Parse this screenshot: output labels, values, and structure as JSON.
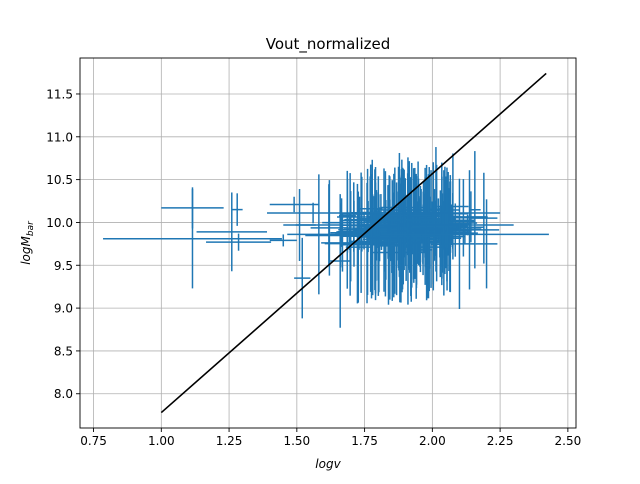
{
  "chart_data": {
    "type": "scatter",
    "title": "Vout_normalized",
    "xlabel": "logv",
    "ylabel_base": "logM",
    "ylabel_sub": "bar",
    "xlim": [
      0.7,
      2.53
    ],
    "ylim": [
      7.6,
      11.92
    ],
    "xticks": [
      0.75,
      1.0,
      1.25,
      1.5,
      1.75,
      2.0,
      2.25,
      2.5
    ],
    "xtick_labels": [
      "0.75",
      "1.00",
      "1.25",
      "1.50",
      "1.75",
      "2.00",
      "2.25",
      "2.50"
    ],
    "yticks": [
      8.0,
      8.5,
      9.0,
      9.5,
      10.0,
      10.5,
      11.0,
      11.5
    ],
    "ytick_labels": [
      "8.0",
      "8.5",
      "9.0",
      "9.5",
      "10.0",
      "10.5",
      "11.0",
      "11.5"
    ],
    "grid": true,
    "colors": {
      "errorbar": "#1f77b4",
      "fit_line": "#000000",
      "grid": "#b0b0b0",
      "axes": "#000000"
    },
    "fit_line": {
      "x": [
        1.0,
        2.42
      ],
      "y": [
        7.78,
        11.74
      ]
    },
    "errorbars_explicit": [
      {
        "x": 1.115,
        "y": 10.17,
        "xerr": 0.115,
        "yerr": 0.24
      },
      {
        "x": 1.115,
        "y": 9.81,
        "xerr": 0.33,
        "yerr": 0.58
      },
      {
        "x": 1.26,
        "y": 9.89,
        "xerr": 0.13,
        "yerr": 0.46
      },
      {
        "x": 1.285,
        "y": 9.77,
        "xerr": 0.12,
        "yerr": 0.1
      },
      {
        "x": 1.28,
        "y": 10.15,
        "xerr": 0.02,
        "yerr": 0.19
      },
      {
        "x": 1.49,
        "y": 10.21,
        "xerr": 0.09,
        "yerr": 0.09
      },
      {
        "x": 1.56,
        "y": 10.11,
        "xerr": 0.17,
        "yerr": 0.12
      },
      {
        "x": 2.13,
        "y": 9.97,
        "xerr": 0.17,
        "yerr": 0.12
      },
      {
        "x": 2.07,
        "y": 10.11,
        "xerr": 0.18,
        "yerr": 0.1
      },
      {
        "x": 2.12,
        "y": 9.86,
        "xerr": 0.31,
        "yerr": 0.11
      },
      {
        "x": 1.45,
        "y": 9.79,
        "xerr": 0.05,
        "yerr": 0.07
      },
      {
        "x": 1.52,
        "y": 9.35,
        "xerr": 0.03,
        "yerr": 0.47
      },
      {
        "x": 1.51,
        "y": 9.97,
        "xerr": 0.06,
        "yerr": 0.42
      },
      {
        "x": 1.66,
        "y": 9.55,
        "xerr": 0.04,
        "yerr": 0.78
      },
      {
        "x": 1.91,
        "y": 9.9,
        "xerr": 0.06,
        "yerr": 0.86
      },
      {
        "x": 2.1,
        "y": 9.75,
        "xerr": 0.06,
        "yerr": 0.76
      },
      {
        "x": 2.19,
        "y": 10.05,
        "xerr": 0.05,
        "yerr": 0.53
      },
      {
        "x": 2.2,
        "y": 9.75,
        "xerr": 0.04,
        "yerr": 0.52
      }
    ],
    "errorbar_cloud": {
      "count": 230,
      "x_mean": 1.9,
      "x_sd": 0.11,
      "x_range": [
        1.5,
        2.2
      ],
      "y_mean": 9.92,
      "y_sd": 0.11,
      "yerr_range": [
        0.15,
        0.75
      ],
      "xerr_range": [
        0.02,
        0.14
      ]
    }
  }
}
